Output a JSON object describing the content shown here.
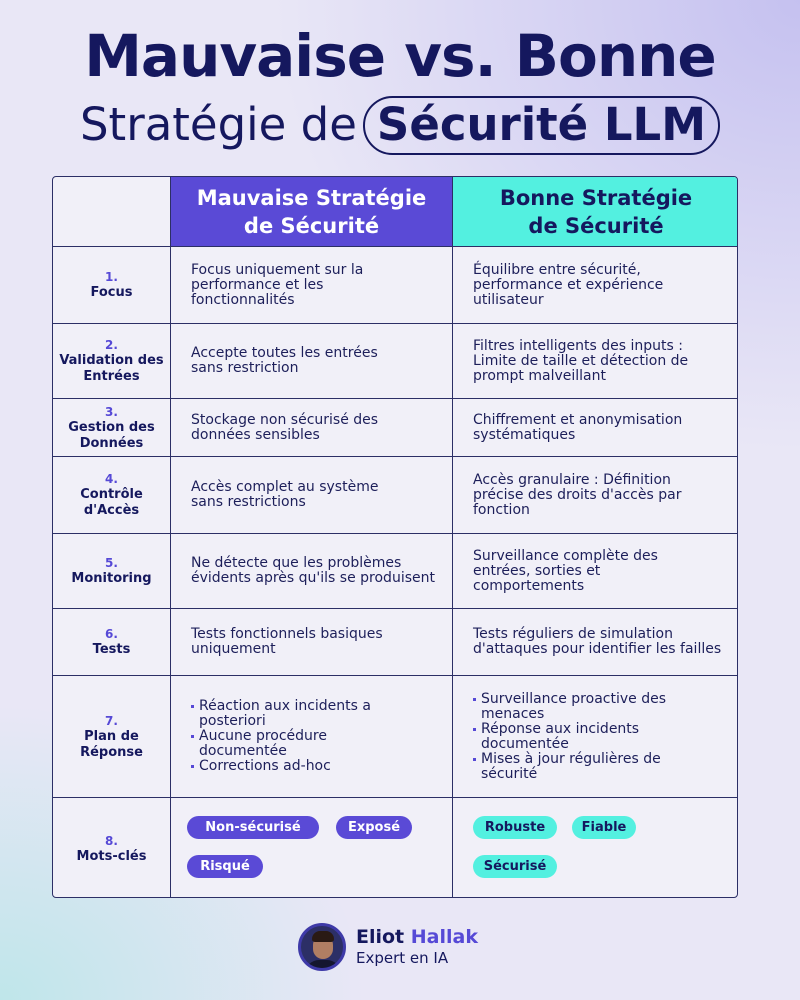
{
  "title": {
    "line1": "Mauvaise vs. Bonne",
    "line2_prefix": "Stratégie de",
    "line2_highlight": "Sécurité LLM"
  },
  "columns": {
    "bad": "Mauvaise Stratégie de Sécurité",
    "good": "Bonne Stratégie de Sécurité"
  },
  "rows": [
    {
      "num": "1.",
      "label": "Focus",
      "bad": "Focus uniquement sur la performance et les fonctionnalités",
      "good": "Équilibre entre sécurité, performance et expérience utilisateur"
    },
    {
      "num": "2.",
      "label": "Validation des Entrées",
      "bad": "Accepte toutes les entrées sans restriction",
      "good": "Filtres intelligents des inputs : Limite de taille et détection de prompt malveillant"
    },
    {
      "num": "3.",
      "label": "Gestion des Données",
      "bad": "Stockage non sécurisé des données sensibles",
      "good": "Chiffrement et anonymisation systématiques"
    },
    {
      "num": "4.",
      "label": "Contrôle d'Accès",
      "bad": "Accès complet au système sans restrictions",
      "good": "Accès granulaire : Définition précise des droits d'accès par fonction"
    },
    {
      "num": "5.",
      "label": "Monitoring",
      "bad": "Ne détecte que les problèmes évidents après qu'ils se produisent",
      "good": "Surveillance complète des entrées, sorties et comportements"
    },
    {
      "num": "6.",
      "label": "Tests",
      "bad": "Tests fonctionnels basiques uniquement",
      "good": "Tests réguliers de simulation d'attaques pour identifier les failles"
    },
    {
      "num": "7.",
      "label": "Plan de Réponse",
      "bad_list": [
        "Réaction aux incidents a posteriori",
        "Aucune procédure documentée",
        "Corrections ad-hoc"
      ],
      "good_list": [
        "Surveillance proactive des menaces",
        "Réponse aux incidents documentée",
        "Mises à jour régulières de sécurité"
      ]
    },
    {
      "num": "8.",
      "label": "Mots-clés",
      "bad_tags": [
        "Non-sécurisé",
        "Exposé",
        "Risqué"
      ],
      "good_tags": [
        "Robuste",
        "Fiable",
        "Sécurisé"
      ]
    }
  ],
  "author": {
    "first_name": "Eliot",
    "last_name": "Hallak",
    "role": "Expert en IA"
  },
  "colors": {
    "navy": "#15185e",
    "purple": "#5a4ad6",
    "cyan": "#53f0e0"
  }
}
